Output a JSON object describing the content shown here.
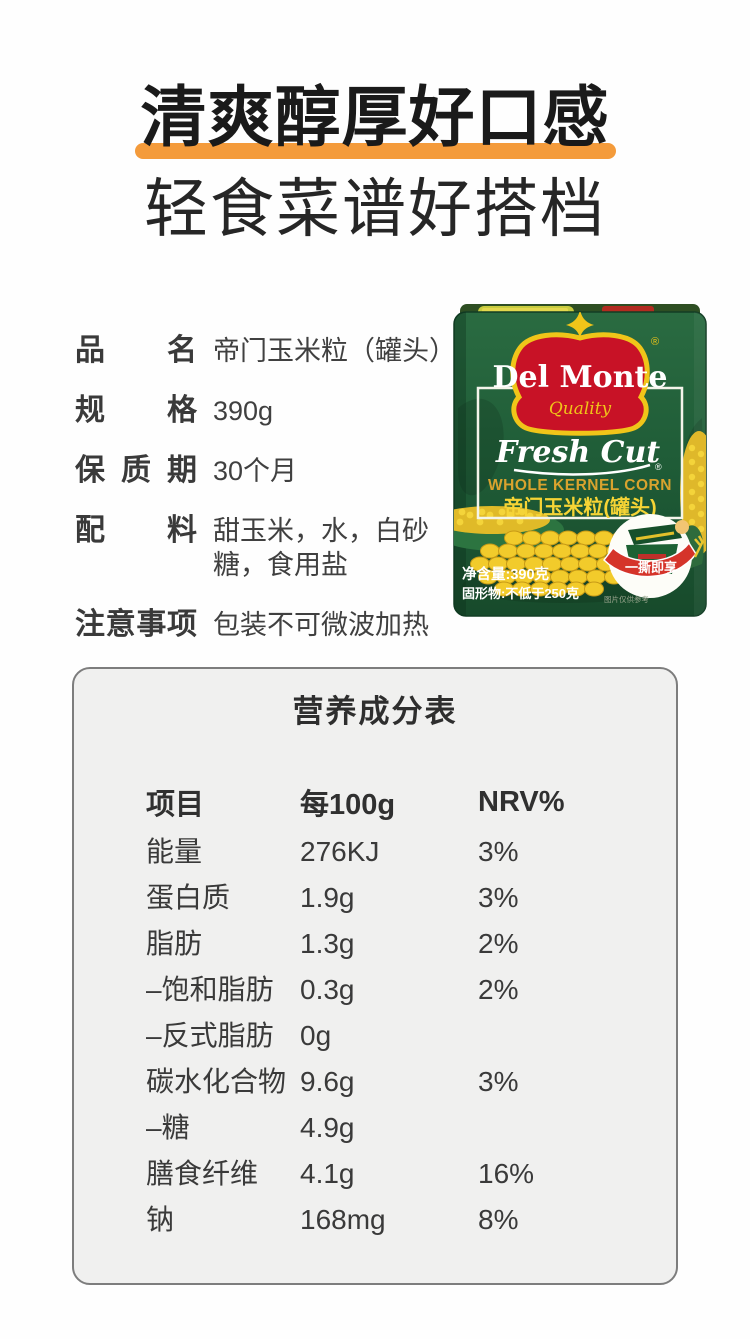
{
  "header": {
    "headline_highlight": "清爽醇厚好口感",
    "headline_sub": "轻食菜谱好搭档"
  },
  "product_info": {
    "rows": [
      {
        "label": "品名",
        "value": "帝门玉米粒（罐头）"
      },
      {
        "label": "规格",
        "value": "390g"
      },
      {
        "label": "保质期",
        "value": "30个月"
      },
      {
        "label": "配料",
        "value": "甜玉米，水，白砂糖，食用盐"
      },
      {
        "label": "注意事项",
        "value": "包装不可微波加热"
      }
    ]
  },
  "package": {
    "brand": "Del Monte",
    "brand_tagline": "Quality",
    "registered_mark": "®",
    "product_line": "Fresh Cut",
    "product_name_en": "WHOLE KERNEL CORN",
    "product_name_cn": "帝门玉米粒(罐头)",
    "net_weight": "净含量:390克",
    "solid_content": "固形物:不低于250克",
    "ribbon_text": "一撕即享",
    "disclaimer": "图片仅供参考"
  },
  "nutrition": {
    "title": "营养成分表",
    "columns": [
      "项目",
      "每100g",
      "NRV%"
    ],
    "rows": [
      {
        "item": "能量",
        "per100g": "276KJ",
        "nrv": "3%"
      },
      {
        "item": "蛋白质",
        "per100g": "1.9g",
        "nrv": "3%"
      },
      {
        "item": "脂肪",
        "per100g": "1.3g",
        "nrv": "2%"
      },
      {
        "item": "–饱和脂肪",
        "per100g": "0.3g",
        "nrv": "2%"
      },
      {
        "item": "–反式脂肪",
        "per100g": "0g",
        "nrv": ""
      },
      {
        "item": "碳水化合物",
        "per100g": "9.6g",
        "nrv": "3%"
      },
      {
        "item": "–糖",
        "per100g": "4.9g",
        "nrv": ""
      },
      {
        "item": "膳食纤维",
        "per100g": "4.1g",
        "nrv": "16%"
      },
      {
        "item": "钠",
        "per100g": "168mg",
        "nrv": "8%"
      }
    ]
  },
  "colors": {
    "accent_orange": "#F49B3B",
    "package_green": "#1E5B37",
    "logo_red": "#C81226",
    "logo_gold": "#F0C519",
    "corn_yellow": "#F2CB2B",
    "card_background": "#F0F0EF",
    "card_border": "#7D7D7D"
  }
}
